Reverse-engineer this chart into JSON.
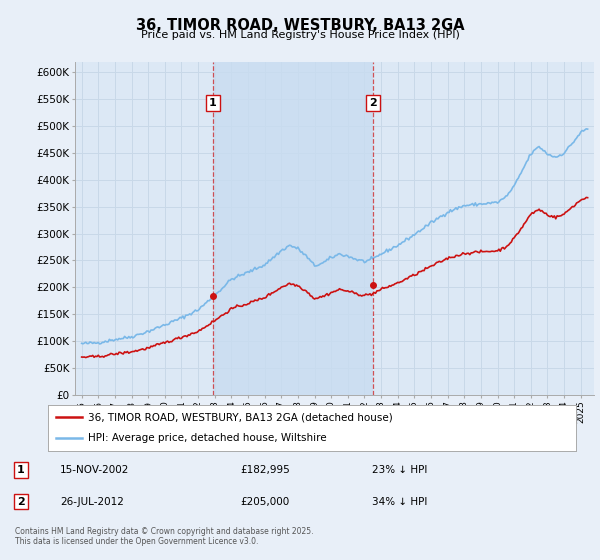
{
  "title": "36, TIMOR ROAD, WESTBURY, BA13 2GA",
  "subtitle": "Price paid vs. HM Land Registry's House Price Index (HPI)",
  "bg_color": "#e8eff8",
  "plot_bg_color": "#dce8f5",
  "grid_color": "#c8d8e8",
  "sale1_x": 2002.88,
  "sale1_price": 182995,
  "sale2_x": 2012.54,
  "sale2_price": 205000,
  "legend_line1": "36, TIMOR ROAD, WESTBURY, BA13 2GA (detached house)",
  "legend_line2": "HPI: Average price, detached house, Wiltshire",
  "hpi_color": "#7ab8e8",
  "price_color": "#cc1111",
  "shade_color": "#c8dcf0",
  "ylim": [
    0,
    620000
  ],
  "yticks": [
    0,
    50000,
    100000,
    150000,
    200000,
    250000,
    300000,
    350000,
    400000,
    450000,
    500000,
    550000,
    600000
  ],
  "xlim_min": 1994.6,
  "xlim_max": 2025.8,
  "footnote": "Contains HM Land Registry data © Crown copyright and database right 2025.\nThis data is licensed under the Open Government Licence v3.0."
}
